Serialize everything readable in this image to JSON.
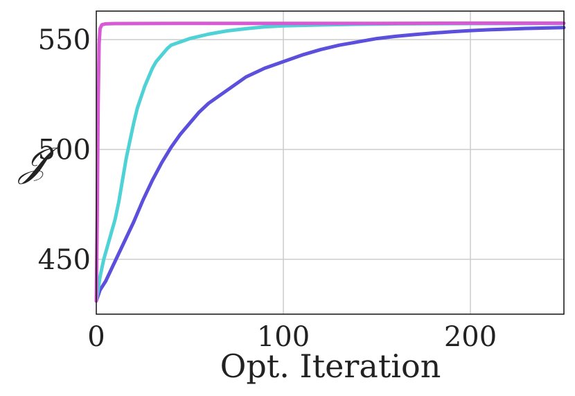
{
  "chart_data": {
    "type": "line",
    "title": "",
    "xlabel": "Opt. Iteration",
    "ylabel": "𝒥",
    "xlim": [
      0,
      250
    ],
    "ylim": [
      425,
      563
    ],
    "xticks": [
      0,
      100,
      200
    ],
    "yticks": [
      450,
      500,
      550
    ],
    "grid": true,
    "legend": "none",
    "series": [
      {
        "color": "#5b4fdc",
        "x": [
          0,
          2,
          5,
          10,
          15,
          20,
          25,
          30,
          35,
          40,
          45,
          50,
          55,
          60,
          65,
          70,
          80,
          90,
          100,
          110,
          120,
          130,
          140,
          150,
          160,
          170,
          180,
          190,
          200,
          210,
          220,
          230,
          240,
          250
        ],
        "y": [
          431,
          436,
          440,
          449,
          458,
          467,
          477,
          486,
          494,
          501,
          507,
          512,
          517,
          521,
          524,
          527,
          533,
          537,
          540,
          543,
          545.5,
          547.5,
          549,
          550.5,
          551.5,
          552.3,
          553,
          553.6,
          554.1,
          554.5,
          554.8,
          555.1,
          555.3,
          555.5
        ]
      },
      {
        "color": "#4fd2d6",
        "x": [
          0,
          2,
          4,
          6,
          8,
          10,
          12,
          14,
          16,
          18,
          20,
          22,
          24,
          26,
          28,
          30,
          32,
          34,
          36,
          38,
          40,
          45,
          50,
          55,
          60,
          70,
          80,
          90,
          100,
          120,
          140,
          160,
          200,
          250
        ],
        "y": [
          431,
          442,
          450,
          456,
          462,
          468,
          476,
          486,
          496,
          504,
          512,
          519,
          524,
          529,
          533,
          537,
          540,
          542,
          544,
          546,
          547.5,
          549,
          550.5,
          551.5,
          552.5,
          554,
          555,
          555.8,
          556.3,
          556.7,
          557,
          557.2,
          557.3,
          557.4
        ]
      },
      {
        "color": "#d65ad3",
        "x": [
          0,
          0.5,
          1,
          1.5,
          2,
          3,
          5,
          10,
          50,
          100,
          150,
          200,
          250
        ],
        "y": [
          431,
          470,
          520,
          548,
          555,
          556.8,
          557.2,
          557.3,
          557.4,
          557.4,
          557.4,
          557.5,
          557.5
        ]
      }
    ]
  }
}
